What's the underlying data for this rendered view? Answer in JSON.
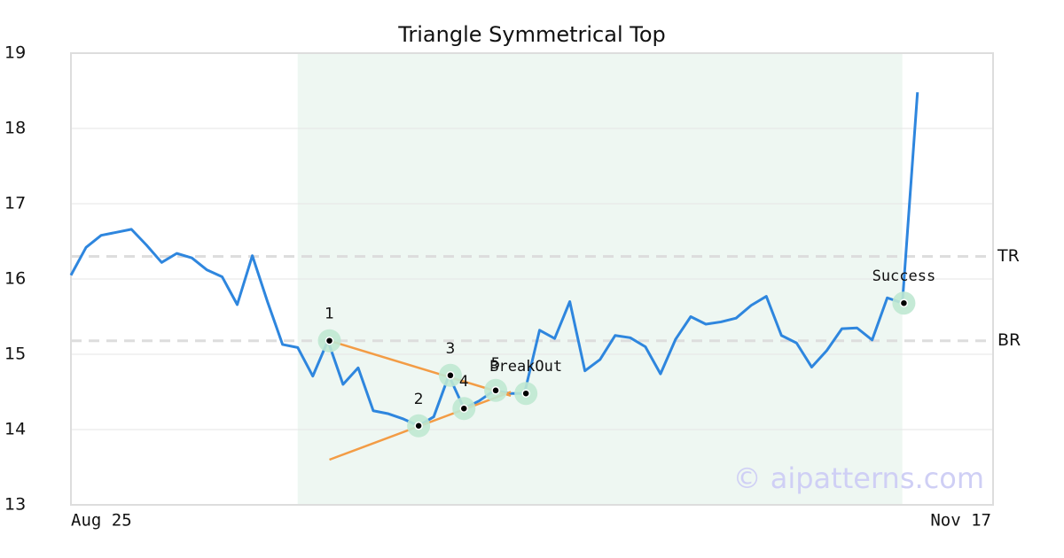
{
  "chart_data": {
    "type": "line",
    "title": "Triangle Symmetrical Top",
    "x_labels": [
      "Aug 25",
      "Nov 17"
    ],
    "series": [
      {
        "color": "#2e86de",
        "values": [
          16.05,
          16.42,
          16.58,
          16.62,
          16.66,
          16.45,
          16.22,
          16.34,
          16.28,
          16.12,
          16.03,
          15.66,
          16.31,
          15.7,
          15.13,
          15.09,
          14.71,
          15.18,
          14.6,
          14.82,
          14.25,
          14.21,
          14.14,
          14.05,
          14.17,
          14.72,
          14.28,
          14.38,
          14.52,
          14.48,
          14.48,
          15.32,
          15.21,
          15.7,
          14.78,
          14.93,
          15.25,
          15.22,
          15.1,
          14.74,
          15.2,
          15.5,
          15.4,
          15.43,
          15.48,
          15.65,
          15.77,
          15.25,
          15.15,
          14.83,
          15.05,
          15.34,
          15.35,
          15.19,
          15.75,
          15.68,
          18.48
        ]
      }
    ],
    "xlim": [
      0,
      61
    ],
    "ylim": [
      13,
      19
    ],
    "yticks": [
      13,
      14,
      15,
      16,
      17,
      18,
      19
    ],
    "grid": true,
    "shaded_range": [
      15,
      55
    ],
    "levels": [
      {
        "label": "TR",
        "value": 16.3
      },
      {
        "label": "BR",
        "value": 15.18
      }
    ],
    "trend_lines": [
      {
        "color": "#f39c45",
        "x": [
          17.1,
          29.1
        ],
        "y": [
          15.18,
          14.45
        ]
      },
      {
        "color": "#f39c45",
        "x": [
          17.1,
          29.1
        ],
        "y": [
          13.6,
          14.5
        ]
      }
    ],
    "points": [
      {
        "label": "1",
        "x": 17.1,
        "y": 15.18
      },
      {
        "label": "2",
        "x": 23,
        "y": 14.05
      },
      {
        "label": "3",
        "x": 25.1,
        "y": 14.72
      },
      {
        "label": "4",
        "x": 26,
        "y": 14.28
      },
      {
        "label": "5",
        "x": 28.1,
        "y": 14.52
      },
      {
        "label": "BreakOut",
        "x": 30.1,
        "y": 14.48
      },
      {
        "label": "Success",
        "x": 55.1,
        "y": 15.68
      }
    ],
    "watermark": "© aipatterns.com"
  }
}
